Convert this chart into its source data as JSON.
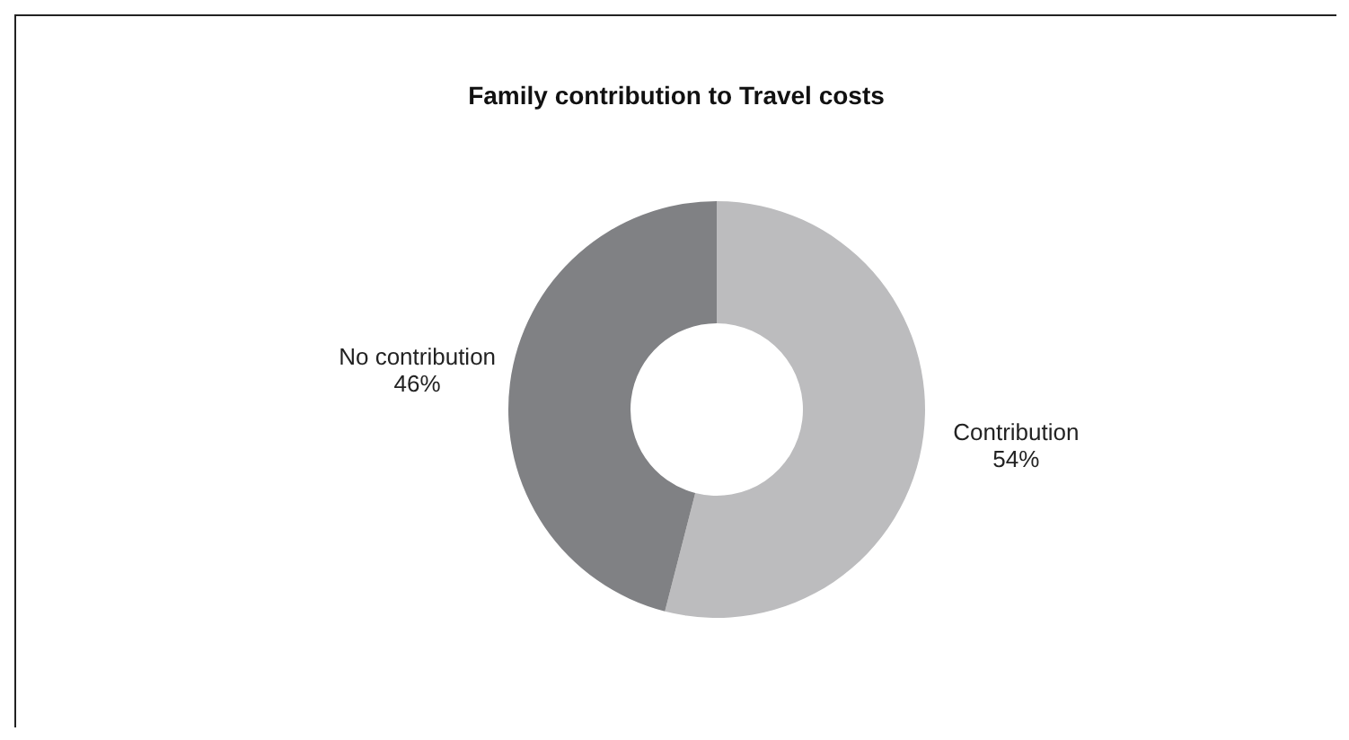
{
  "chart_data": {
    "type": "donut",
    "title": "Family contribution to Travel costs",
    "categories": [
      "Contribution",
      "No contribution"
    ],
    "values": [
      54,
      46
    ],
    "colors": [
      "#bcbcbe",
      "#808184"
    ],
    "value_labels": [
      "54%",
      "46%"
    ],
    "legend": false
  }
}
